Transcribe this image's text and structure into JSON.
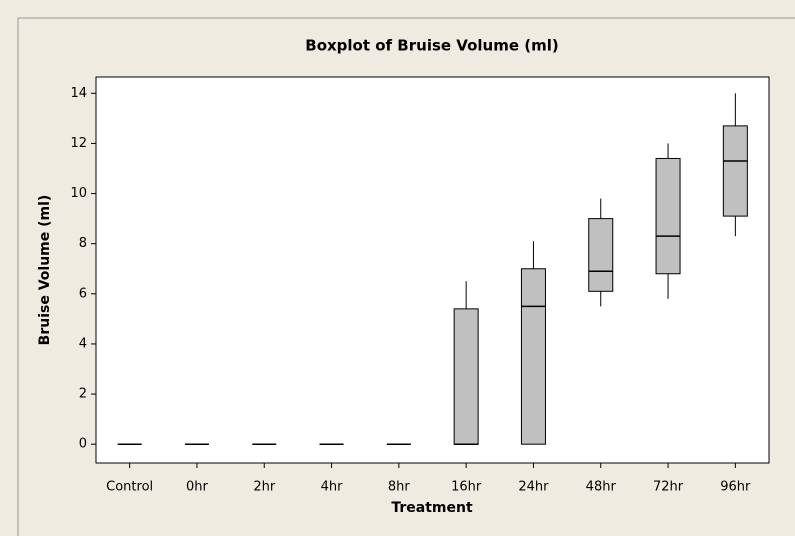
{
  "chart_data": {
    "type": "boxplot",
    "title": "Boxplot of Bruise Volume (ml)",
    "x_label": "Treatment",
    "y_label": "Bruise Volume (ml)",
    "categories": [
      "Control",
      "0hr",
      "2hr",
      "4hr",
      "8hr",
      "16hr",
      "24hr",
      "48hr",
      "72hr",
      "96hr"
    ],
    "boxes": [
      {
        "min": 0,
        "q1": 0,
        "median": 0,
        "q3": 0,
        "max": 0
      },
      {
        "min": 0,
        "q1": 0,
        "median": 0,
        "q3": 0,
        "max": 0
      },
      {
        "min": 0,
        "q1": 0,
        "median": 0,
        "q3": 0,
        "max": 0
      },
      {
        "min": 0,
        "q1": 0,
        "median": 0,
        "q3": 0,
        "max": 0
      },
      {
        "min": 0,
        "q1": 0,
        "median": 0,
        "q3": 0,
        "max": 0
      },
      {
        "min": 0,
        "q1": 0,
        "median": 0,
        "q3": 5.4,
        "max": 6.5
      },
      {
        "min": 0,
        "q1": 0,
        "median": 5.5,
        "q3": 7.0,
        "max": 8.1
      },
      {
        "min": 5.5,
        "q1": 6.1,
        "median": 6.9,
        "q3": 9.0,
        "max": 9.8
      },
      {
        "min": 5.8,
        "q1": 6.8,
        "median": 8.3,
        "q3": 11.4,
        "max": 12.0
      },
      {
        "min": 8.3,
        "q1": 9.1,
        "median": 11.3,
        "q3": 12.7,
        "max": 14.0
      }
    ],
    "color": "#c0c0c0",
    "ylim": [
      -0.75,
      14.65
    ],
    "yticks": [
      0,
      2,
      4,
      6,
      8,
      10,
      12,
      14
    ]
  }
}
